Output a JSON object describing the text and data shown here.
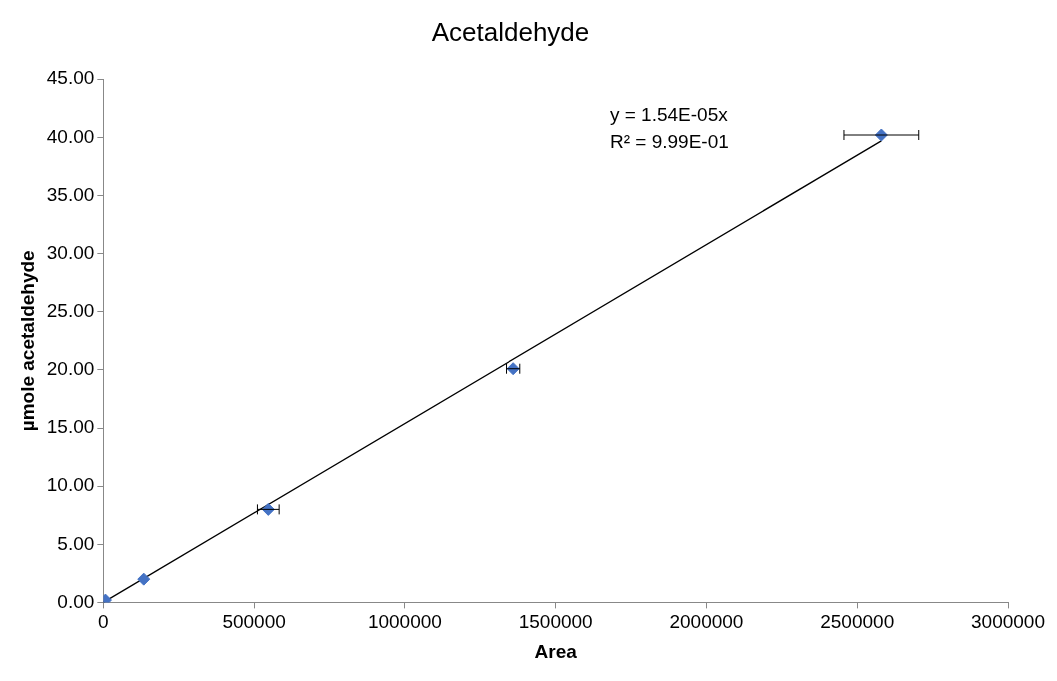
{
  "chart_data": {
    "type": "scatter",
    "title": "Acetaldehyde",
    "xlabel": "Area",
    "ylabel": "µmole acetaldehyde",
    "annotations": [
      "y = 1.54E-05x",
      "R² = 9.99E-01"
    ],
    "xlim": [
      0,
      3000000
    ],
    "xticks": [
      0,
      500000,
      1000000,
      1500000,
      2000000,
      2500000,
      3000000
    ],
    "ylim": [
      0,
      45
    ],
    "yticks": [
      {
        "value": 0,
        "label": "0.00"
      },
      {
        "value": 5,
        "label": "5.00"
      },
      {
        "value": 10,
        "label": "10.00"
      },
      {
        "value": 15,
        "label": "15.00"
      },
      {
        "value": 20,
        "label": "20.00"
      },
      {
        "value": 25,
        "label": "25.00"
      },
      {
        "value": 30,
        "label": "30.00"
      },
      {
        "value": 35,
        "label": "35.00"
      },
      {
        "value": 40,
        "label": "40.00"
      },
      {
        "value": 45,
        "label": "45.00"
      }
    ],
    "grid": false,
    "legend": false,
    "series": [
      {
        "color": "#4472c4",
        "marker": "diamond",
        "x": [
          7000,
          134000,
          547000,
          1359000,
          2580000
        ],
        "values": [
          0.2,
          2.0,
          8.0,
          20.1,
          40.2
        ],
        "xerrors": [
          null,
          null,
          36000,
          22000,
          124000
        ]
      },
      {
        "type": "line",
        "color": "#000000",
        "marker": "none",
        "line_style": "solid",
        "x": [
          0,
          2580000
        ],
        "values": [
          0,
          39.7
        ]
      }
    ]
  }
}
